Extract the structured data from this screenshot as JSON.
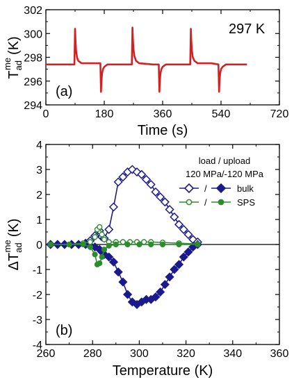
{
  "chart_data": [
    {
      "type": "line",
      "panel_label": "(a)",
      "annotation": "297 K",
      "xlabel": "Time (s)",
      "ylabel": "T",
      "ylabel_sub": "ad",
      "ylabel_sup": "me",
      "ylabel_unit": "(K)",
      "xlim": [
        0,
        720
      ],
      "ylim": [
        294,
        302
      ],
      "xticks": [
        0,
        180,
        360,
        540,
        720
      ],
      "yticks": [
        294,
        296,
        298,
        300,
        302
      ],
      "series": [
        {
          "color": "#d42020",
          "x": [
            0,
            60,
            88,
            90,
            91,
            93,
            96,
            100,
            110,
            150,
            168,
            170,
            171,
            173,
            176,
            180,
            190,
            230,
            265,
            267,
            268,
            270,
            273,
            278,
            288,
            330,
            348,
            350,
            351,
            353,
            356,
            360,
            370,
            420,
            445,
            447,
            448,
            450,
            453,
            458,
            468,
            510,
            532,
            534,
            535,
            537,
            540,
            545,
            555,
            620
          ],
          "y": [
            297.4,
            297.4,
            297.4,
            300.4,
            299.6,
            298.6,
            298.0,
            297.7,
            297.5,
            297.5,
            297.5,
            295.1,
            295.8,
            296.6,
            297.0,
            297.2,
            297.4,
            297.4,
            297.4,
            300.5,
            299.7,
            298.7,
            298.1,
            297.7,
            297.5,
            297.4,
            297.4,
            295.1,
            295.8,
            296.6,
            297.0,
            297.2,
            297.4,
            297.4,
            297.4,
            300.4,
            299.6,
            298.6,
            298.0,
            297.7,
            297.5,
            297.5,
            297.4,
            295.1,
            295.8,
            296.6,
            297.0,
            297.2,
            297.4,
            297.4
          ]
        }
      ]
    },
    {
      "type": "line",
      "panel_label": "(b)",
      "xlabel": "Temperature (K)",
      "ylabel": "ΔT",
      "ylabel_sub": "ad",
      "ylabel_sup": "me",
      "ylabel_unit": "(K)",
      "xlim": [
        260,
        360
      ],
      "ylim": [
        -4,
        4
      ],
      "xticks": [
        260,
        280,
        300,
        320,
        340,
        360
      ],
      "yticks": [
        -4,
        -3,
        -2,
        -1,
        0,
        1,
        2,
        3,
        4
      ],
      "legend": {
        "position": "top-right",
        "header1": "load / upload",
        "header2": "120 MPa/-120 MPa",
        "sep": "/",
        "entries": [
          "bulk",
          "SPS"
        ]
      },
      "series": [
        {
          "name": "bulk",
          "mode": "load",
          "color": "#1a1a8c",
          "marker": "diamond-open",
          "x": [
            262,
            265,
            268,
            271,
            274,
            277,
            279,
            281,
            283,
            284,
            285,
            287,
            289,
            291,
            293,
            295,
            297,
            299,
            301,
            303,
            305,
            307,
            309,
            311,
            313,
            315,
            317,
            319,
            321,
            323,
            325
          ],
          "y": [
            0.0,
            0.0,
            0.0,
            0.0,
            0.0,
            0.05,
            0.15,
            0.35,
            0.55,
            0.3,
            0.25,
            0.6,
            1.5,
            2.5,
            2.7,
            2.9,
            3.0,
            2.9,
            2.8,
            2.6,
            2.4,
            2.1,
            1.9,
            1.7,
            1.4,
            1.1,
            0.8,
            0.6,
            0.4,
            0.2,
            0.1
          ]
        },
        {
          "name": "bulk",
          "mode": "upload",
          "color": "#1a1a8c",
          "marker": "diamond-filled",
          "x": [
            325,
            323,
            321,
            319,
            317,
            315,
            313,
            311,
            309,
            307,
            305,
            303,
            301,
            299,
            297,
            295,
            293,
            291,
            289,
            287,
            285,
            284,
            283,
            281,
            279,
            277,
            274,
            271,
            268,
            265,
            262
          ],
          "y": [
            0.0,
            -0.1,
            -0.3,
            -0.5,
            -0.8,
            -1.0,
            -1.3,
            -1.6,
            -1.9,
            -2.1,
            -2.2,
            -2.2,
            -2.3,
            -2.4,
            -2.3,
            -2.0,
            -1.5,
            -1.1,
            -0.7,
            -0.5,
            -0.4,
            -0.3,
            -0.2,
            -0.1,
            -0.05,
            0.0,
            0.0,
            0.0,
            0.0,
            0.0,
            0.0
          ]
        },
        {
          "name": "SPS",
          "mode": "load",
          "color": "#2e8b2e",
          "marker": "circle-open",
          "x": [
            262,
            270,
            276,
            279,
            281,
            282,
            283,
            284,
            285,
            287,
            290,
            293,
            296,
            299,
            302,
            305,
            310,
            317,
            325
          ],
          "y": [
            0.0,
            0.0,
            0.05,
            0.1,
            0.3,
            0.6,
            0.7,
            0.4,
            0.2,
            0.1,
            0.1,
            0.1,
            0.1,
            0.1,
            0.1,
            0.1,
            0.08,
            0.05,
            0.02
          ]
        },
        {
          "name": "SPS",
          "mode": "upload",
          "color": "#2e8b2e",
          "marker": "circle-filled",
          "x": [
            325,
            317,
            310,
            305,
            300,
            295,
            290,
            287,
            285,
            284,
            283,
            282,
            281,
            279,
            276,
            270,
            262
          ],
          "y": [
            0.0,
            0.0,
            0.0,
            0.0,
            0.0,
            0.0,
            0.0,
            -0.05,
            -0.2,
            -0.5,
            -0.75,
            -0.8,
            -0.4,
            -0.1,
            0.0,
            0.0,
            0.0
          ]
        }
      ]
    }
  ]
}
